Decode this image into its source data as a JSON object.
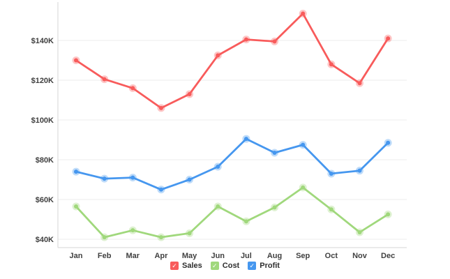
{
  "chart_data": {
    "type": "line",
    "title": "",
    "xlabel": "",
    "ylabel": "",
    "categories": [
      "Jan",
      "Feb",
      "Mar",
      "Apr",
      "May",
      "Jun",
      "Jul",
      "Aug",
      "Sep",
      "Oct",
      "Nov",
      "Dec"
    ],
    "series": [
      {
        "name": "Sales",
        "color": "#f85b5b",
        "values": [
          130,
          120.5,
          116,
          106,
          113,
          132.5,
          140.5,
          139.5,
          153.5,
          128,
          118.5,
          141
        ]
      },
      {
        "name": "Cost",
        "color": "#a0d87c",
        "values": [
          56.5,
          41,
          44.5,
          41,
          43,
          56.5,
          49,
          56,
          66,
          55,
          43.5,
          52.5
        ]
      },
      {
        "name": "Profit",
        "color": "#4697ef",
        "values": [
          74,
          70.5,
          71,
          65,
          70,
          76.5,
          90.5,
          83.5,
          87.5,
          73,
          74.5,
          88.5
        ]
      }
    ],
    "y_ticks": [
      {
        "label": "$40K",
        "value": 40
      },
      {
        "label": "$60K",
        "value": 60
      },
      {
        "label": "$80K",
        "value": 80
      },
      {
        "label": "$100K",
        "value": 100
      },
      {
        "label": "$120K",
        "value": 120
      },
      {
        "label": "$140K",
        "value": 140
      }
    ],
    "ylim": [
      40,
      160
    ],
    "grid": true,
    "legend_position": "bottom",
    "unit": "USD thousands"
  },
  "icons": {
    "legend_check": "✓"
  },
  "colors": {
    "background": "#ffffff",
    "grid_line": "#ededed",
    "axis_line": "#d6d6d6",
    "tick_text": "#3f3f3f",
    "legend_text": "#2e2e2e"
  }
}
